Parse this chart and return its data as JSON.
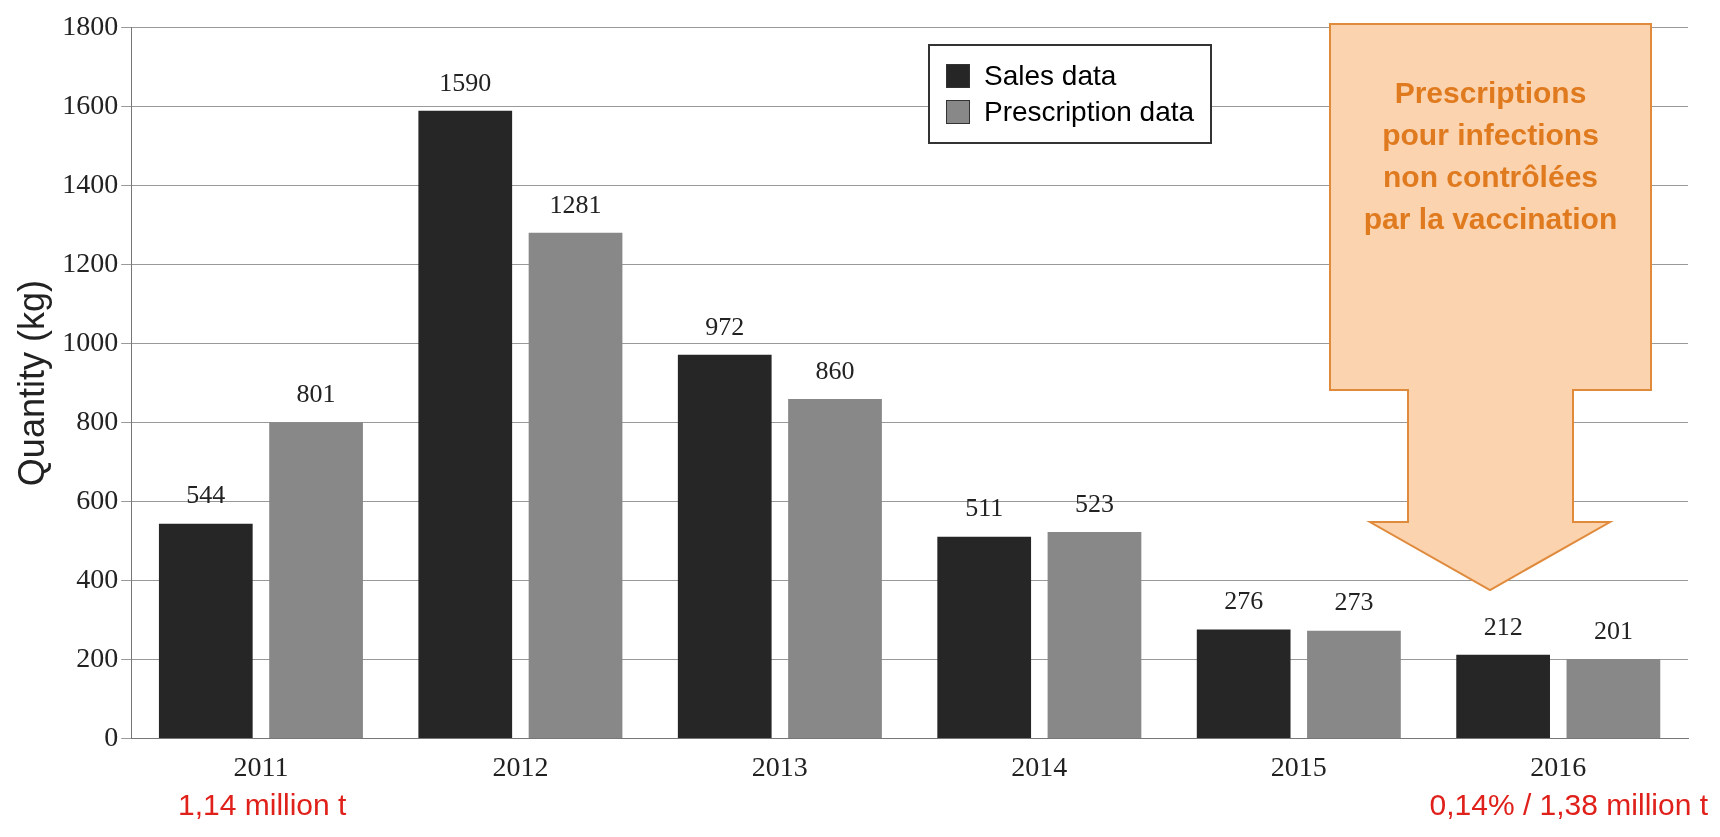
{
  "chart_data": {
    "type": "bar",
    "ylabel": "Quantity (kg)",
    "categories": [
      "2011",
      "2012",
      "2013",
      "2014",
      "2015",
      "2016"
    ],
    "series": [
      {
        "name": "Sales data",
        "color": "#262626",
        "values": [
          544,
          1590,
          972,
          511,
          276,
          212
        ]
      },
      {
        "name": "Prescription data",
        "color": "#888888",
        "values": [
          801,
          1281,
          860,
          523,
          273,
          201
        ]
      }
    ],
    "ylim": [
      0,
      1800
    ],
    "yticks": [
      0,
      200,
      400,
      600,
      800,
      1000,
      1200,
      1400,
      1600,
      1800
    ],
    "grid": "y",
    "legend": "top right",
    "data_labels": true,
    "annotations": [
      "Prescriptions pour infections non contrôlées par la vaccination",
      "1,14 million t",
      "0,14% / 1,38 million t"
    ]
  }
}
